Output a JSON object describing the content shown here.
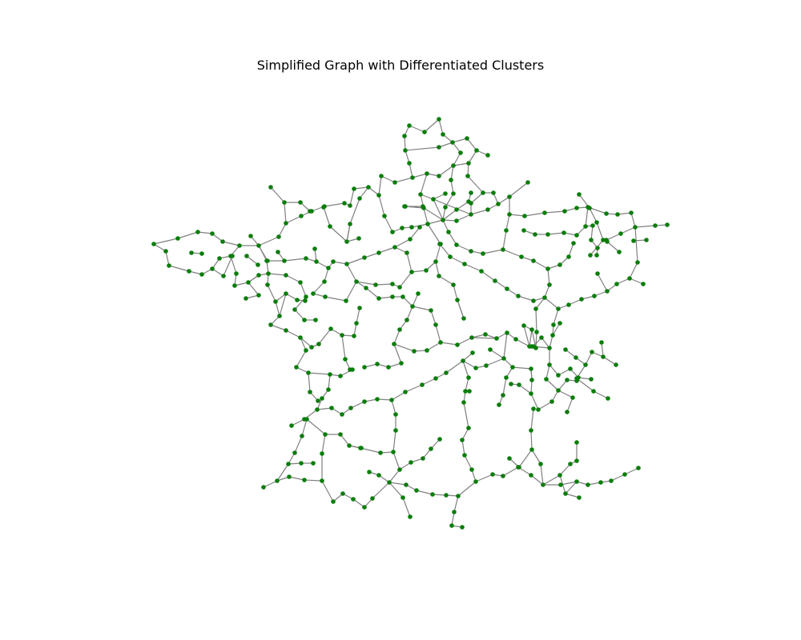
{
  "figure": {
    "title": "Simplified Graph with Differentiated Clusters"
  },
  "style": {
    "node_color": "#0a7d0a",
    "edge_color": "#808080",
    "background": "#ffffff"
  }
}
